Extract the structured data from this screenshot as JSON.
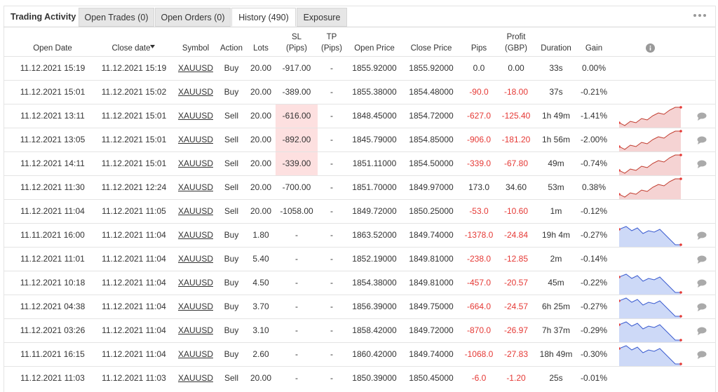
{
  "tabs": [
    "Trading Activity",
    "Open Trades (0)",
    "Open Orders (0)",
    "History (490)",
    "Exposure"
  ],
  "table": {
    "headers": [
      [
        "Open Date"
      ],
      [
        "Close date"
      ],
      [
        "Symbol"
      ],
      [
        "Action"
      ],
      [
        "Lots"
      ],
      [
        "SL",
        "(Pips)"
      ],
      [
        "TP",
        "(Pips)"
      ],
      [
        "Open Price"
      ],
      [
        "Close Price"
      ],
      [
        "Pips"
      ],
      [
        "Profit",
        "(GBP)"
      ],
      [
        "Duration"
      ],
      [
        "Gain"
      ]
    ],
    "rows": [
      {
        "cells": [
          "11.12.2021 15:19",
          "11.12.2021 15:19",
          "XAUUSD",
          "Buy",
          "20.00",
          "-917.00",
          "-",
          "1855.92000",
          "1855.92000",
          "0.0",
          "0.00",
          "33s",
          "0.00%"
        ]
      },
      {
        "cells": [
          "11.12.2021 15:01",
          "11.12.2021 15:02",
          "XAUUSD",
          "Buy",
          "20.00",
          "-389.00",
          "-",
          "1855.38000",
          "1854.48000",
          "-90.0",
          "-18.00",
          "37s",
          "-0.21%"
        ]
      },
      {
        "cells": [
          "11.12.2021 13:11",
          "11.12.2021 15:01",
          "XAUUSD",
          "Sell",
          "20.00",
          "-616.00",
          "-",
          "1848.45000",
          "1854.72000",
          "-627.0",
          "-125.40",
          "1h 49m",
          "-1.41%"
        ],
        "sl_alert": true,
        "sparkline": "sell",
        "comment": true
      },
      {
        "cells": [
          "11.12.2021 13:05",
          "11.12.2021 15:01",
          "XAUUSD",
          "Sell",
          "20.00",
          "-892.00",
          "-",
          "1845.79000",
          "1854.85000",
          "-906.0",
          "-181.20",
          "1h 56m",
          "-2.00%"
        ],
        "sl_alert": true,
        "sparkline": "sell",
        "comment": true
      },
      {
        "cells": [
          "11.12.2021 14:11",
          "11.12.2021 15:01",
          "XAUUSD",
          "Sell",
          "20.00",
          "-339.00",
          "-",
          "1851.11000",
          "1854.50000",
          "-339.0",
          "-67.80",
          "49m",
          "-0.74%"
        ],
        "sl_alert": true,
        "sparkline": "sell",
        "comment": true
      },
      {
        "cells": [
          "11.12.2021 11:30",
          "11.12.2021 12:24",
          "XAUUSD",
          "Sell",
          "20.00",
          "-700.00",
          "-",
          "1851.70000",
          "1849.97000",
          "173.0",
          "34.60",
          "53m",
          "0.38%"
        ],
        "sparkline": "sell"
      },
      {
        "cells": [
          "11.12.2021 11:04",
          "11.12.2021 11:05",
          "XAUUSD",
          "Sell",
          "20.00",
          "-1058.00",
          "-",
          "1849.72000",
          "1850.25000",
          "-53.0",
          "-10.60",
          "1m",
          "-0.12%"
        ]
      },
      {
        "cells": [
          "11.11.2021 16:00",
          "11.12.2021 11:04",
          "XAUUSD",
          "Buy",
          "1.80",
          "-",
          "-",
          "1863.52000",
          "1849.74000",
          "-1378.0",
          "-24.84",
          "19h 4m",
          "-0.27%"
        ],
        "sparkline": "buy",
        "comment": true
      },
      {
        "cells": [
          "11.12.2021 11:01",
          "11.12.2021 11:04",
          "XAUUSD",
          "Buy",
          "5.40",
          "-",
          "-",
          "1852.19000",
          "1849.81000",
          "-238.0",
          "-12.85",
          "2m",
          "-0.14%"
        ],
        "comment": true
      },
      {
        "cells": [
          "11.12.2021 10:18",
          "11.12.2021 11:04",
          "XAUUSD",
          "Buy",
          "4.50",
          "-",
          "-",
          "1854.38000",
          "1849.81000",
          "-457.0",
          "-20.57",
          "45m",
          "-0.22%"
        ],
        "sparkline": "buy",
        "comment": true
      },
      {
        "cells": [
          "11.12.2021 04:38",
          "11.12.2021 11:04",
          "XAUUSD",
          "Buy",
          "3.70",
          "-",
          "-",
          "1856.39000",
          "1849.75000",
          "-664.0",
          "-24.57",
          "6h 25m",
          "-0.27%"
        ],
        "sparkline": "buy",
        "comment": true
      },
      {
        "cells": [
          "11.12.2021 03:26",
          "11.12.2021 11:04",
          "XAUUSD",
          "Buy",
          "3.10",
          "-",
          "-",
          "1858.42000",
          "1849.72000",
          "-870.0",
          "-26.97",
          "7h 37m",
          "-0.29%"
        ],
        "sparkline": "buy",
        "comment": true
      },
      {
        "cells": [
          "11.11.2021 16:15",
          "11.12.2021 11:04",
          "XAUUSD",
          "Buy",
          "2.60",
          "-",
          "-",
          "1860.42000",
          "1849.74000",
          "-1068.0",
          "-27.83",
          "18h 49m",
          "-0.30%"
        ],
        "sparkline": "buy",
        "comment": true
      },
      {
        "cells": [
          "11.12.2021 11:03",
          "11.12.2021 11:03",
          "XAUUSD",
          "Sell",
          "20.00",
          "-",
          "-",
          "1850.39000",
          "1850.45000",
          "-6.0",
          "-1.20",
          "25s",
          "-0.01%"
        ]
      }
    ]
  }
}
